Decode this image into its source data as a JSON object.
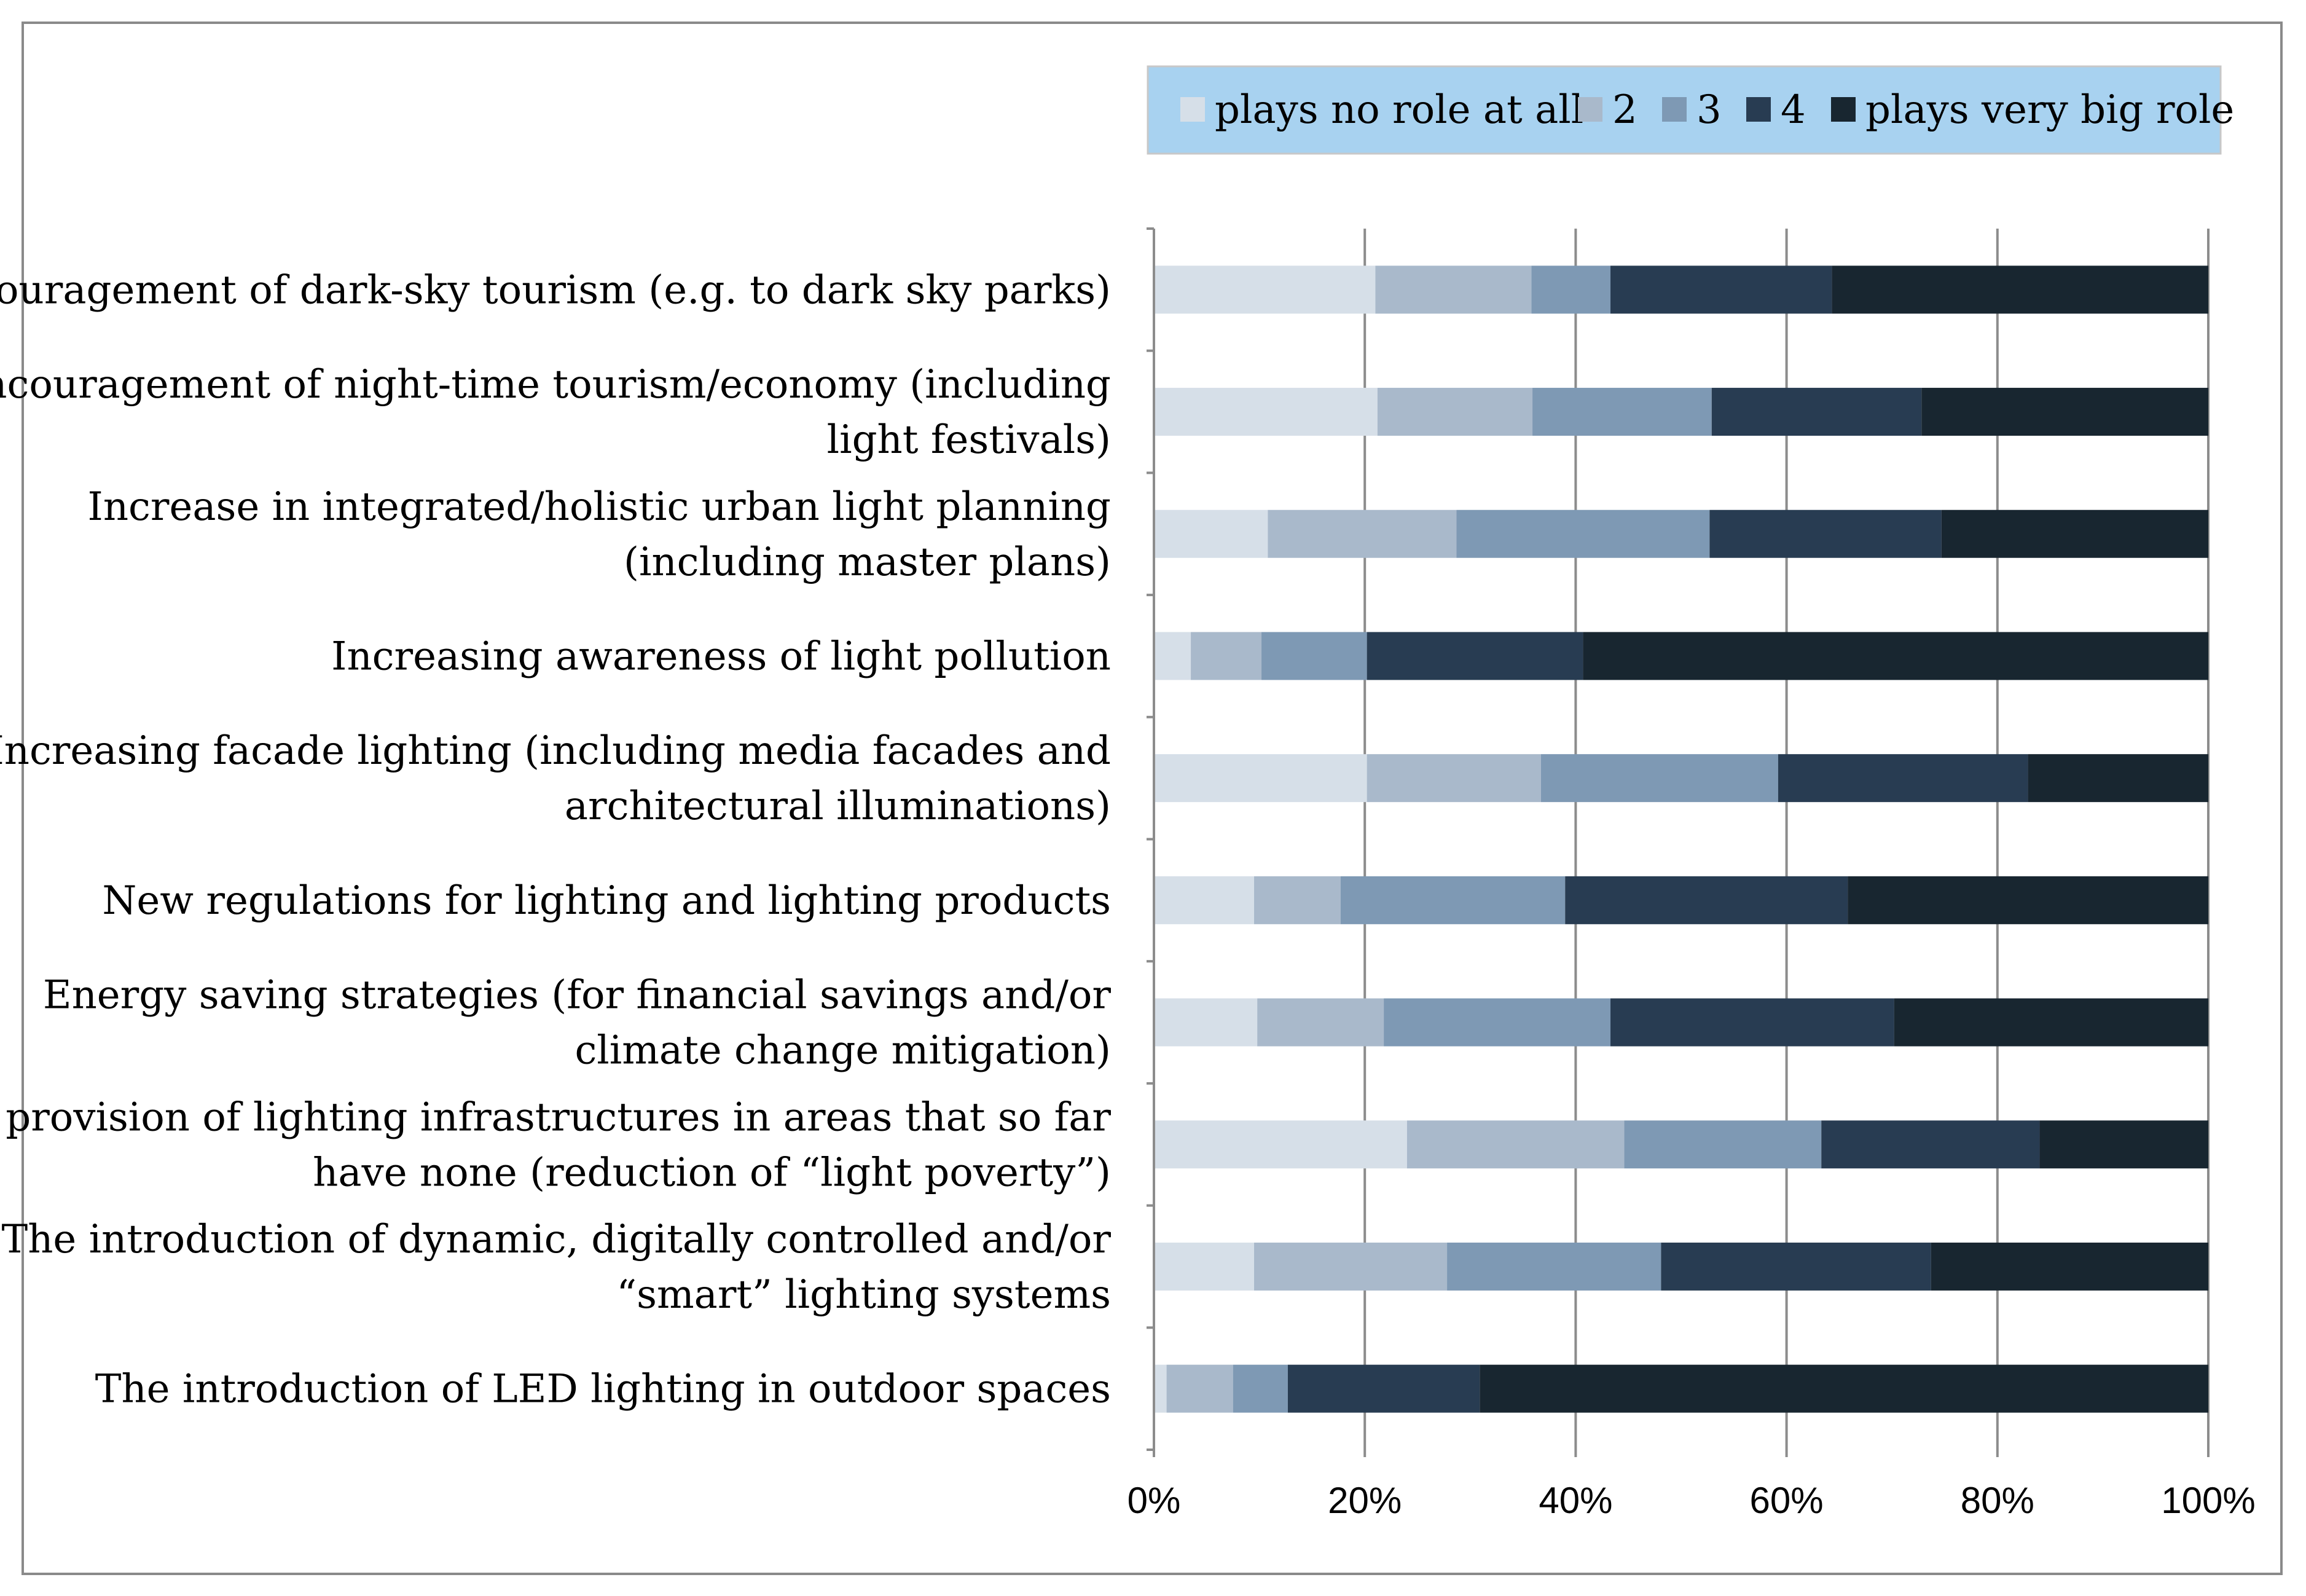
{
  "chart_data": {
    "type": "bar",
    "orientation": "horizontal",
    "stacked": "percent",
    "title": "",
    "xlabel": "",
    "ylabel": "",
    "xlim": [
      0,
      100
    ],
    "x_ticks": [
      "0%",
      "20%",
      "40%",
      "60%",
      "80%",
      "100%"
    ],
    "grid": true,
    "legend_position": "top-right",
    "categories": [
      [
        "Encouragement of dark-sky tourism (e.g. to dark sky parks)"
      ],
      [
        "Encouragement of night-time tourism/economy (including",
        "light festivals)"
      ],
      [
        "Increase in integrated/holistic urban light planning",
        "(including master plans)"
      ],
      [
        "Increasing awareness of light pollution"
      ],
      [
        "Increasing facade lighting (including media facades and",
        "architectural illuminations)"
      ],
      [
        "New regulations for lighting and lighting products"
      ],
      [
        "Energy saving strategies (for financial savings and/or",
        "climate change mitigation)"
      ],
      [
        "The provision of lighting infrastructures in areas that so far",
        "have none (reduction of “light poverty”)"
      ],
      [
        "The introduction of dynamic, digitally controlled and/or",
        "“smart” lighting systems"
      ],
      [
        "The introduction of LED lighting in outdoor spaces"
      ]
    ],
    "series": [
      {
        "name": "plays no role at all",
        "color": "#d6dfe8",
        "values": [
          21.0,
          21.2,
          10.8,
          3.5,
          20.2,
          9.5,
          9.8,
          24.0,
          9.5,
          1.2
        ]
      },
      {
        "name": "2",
        "color": "#a9b9cb",
        "values": [
          14.8,
          14.7,
          17.9,
          6.7,
          16.5,
          8.2,
          12.0,
          20.6,
          18.3,
          6.3
        ]
      },
      {
        "name": "3",
        "color": "#7e99b4",
        "values": [
          7.5,
          17.0,
          24.0,
          10.0,
          22.5,
          21.3,
          21.5,
          18.7,
          20.3,
          5.2
        ]
      },
      {
        "name": "4",
        "color": "#283c52",
        "values": [
          21.0,
          19.9,
          22.0,
          20.5,
          23.7,
          26.8,
          26.9,
          20.7,
          25.6,
          18.2
        ]
      },
      {
        "name": "plays very big role",
        "color": "#182630",
        "values": [
          35.7,
          27.2,
          25.3,
          59.3,
          17.1,
          34.2,
          29.8,
          16.0,
          26.3,
          69.1
        ]
      }
    ]
  },
  "legend": {
    "background": "#a8d2f0",
    "labels": [
      "plays no role at all",
      "2",
      "3",
      "4",
      "plays very big role"
    ]
  }
}
